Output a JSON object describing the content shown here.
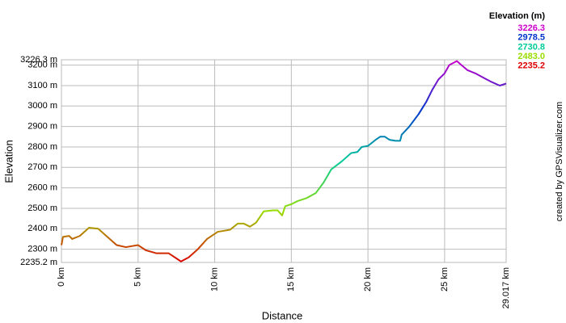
{
  "chart_data": {
    "type": "line",
    "x_label": "Distance",
    "y_label": "Elevation",
    "credit": "created by GPSVisualizer.com",
    "legend": {
      "title": "Elevation (m)",
      "items": [
        {
          "value": 3226.3,
          "label": "3226.3",
          "color": "#cc00cc"
        },
        {
          "value": 2978.5,
          "label": "2978.5",
          "color": "#0033cc"
        },
        {
          "value": 2730.8,
          "label": "2730.8",
          "color": "#00cc99"
        },
        {
          "value": 2483,
          "label": "2483.0",
          "color": "#99dd00"
        },
        {
          "value": 2235.2,
          "label": "2235.2",
          "color": "#dd0000"
        }
      ]
    },
    "x": [
      0,
      0.1,
      0.5,
      0.7,
      1.2,
      1.8,
      2.4,
      3.0,
      3.6,
      4.2,
      5.0,
      5.5,
      6.2,
      7.0,
      7.5,
      7.8,
      8.3,
      8.9,
      9.5,
      10.2,
      10.6,
      11.0,
      11.5,
      11.9,
      12.3,
      12.7,
      13.2,
      13.8,
      14.1,
      14.4,
      14.6,
      15.0,
      15.4,
      16.0,
      16.6,
      17.1,
      17.6,
      18.3,
      18.9,
      19.3,
      19.6,
      20.0,
      20.5,
      20.8,
      21.1,
      21.4,
      21.8,
      22.1,
      22.2,
      22.7,
      23.3,
      23.8,
      24.2,
      24.6,
      25.0,
      25.3,
      25.8,
      26.1,
      26.5,
      27.0,
      27.5,
      28.0,
      28.6,
      29.017
    ],
    "values": [
      2320,
      2360,
      2365,
      2350,
      2365,
      2405,
      2400,
      2360,
      2320,
      2310,
      2320,
      2295,
      2280,
      2280,
      2255,
      2240,
      2260,
      2300,
      2350,
      2385,
      2390,
      2395,
      2425,
      2425,
      2410,
      2430,
      2485,
      2490,
      2490,
      2465,
      2510,
      2520,
      2535,
      2550,
      2575,
      2625,
      2690,
      2730,
      2770,
      2775,
      2800,
      2805,
      2835,
      2850,
      2850,
      2835,
      2830,
      2830,
      2860,
      2900,
      2960,
      3020,
      3080,
      3130,
      3160,
      3200,
      3220,
      3200,
      3175,
      3160,
      3140,
      3120,
      3100,
      3110
    ],
    "xlim": [
      0,
      29.017
    ],
    "xticks": [
      {
        "value": 0,
        "label": "0 km"
      },
      {
        "value": 5,
        "label": "5 km"
      },
      {
        "value": 10,
        "label": "10 km"
      },
      {
        "value": 15,
        "label": "15 km"
      },
      {
        "value": 20,
        "label": "20 km"
      },
      {
        "value": 25,
        "label": "25 km"
      },
      {
        "value": 29.017,
        "label": "29.017 km"
      }
    ],
    "ylim": [
      2235.2,
      3226.3
    ],
    "yticks": [
      {
        "value": 2235.2,
        "label": "2235.2 m"
      },
      {
        "value": 2300,
        "label": "2300 m"
      },
      {
        "value": 2400,
        "label": "2400 m"
      },
      {
        "value": 2500,
        "label": "2500 m"
      },
      {
        "value": 2600,
        "label": "2600 m"
      },
      {
        "value": 2700,
        "label": "2700 m"
      },
      {
        "value": 2800,
        "label": "2800 m"
      },
      {
        "value": 2900,
        "label": "2900 m"
      },
      {
        "value": 3000,
        "label": "3000 m"
      },
      {
        "value": 3100,
        "label": "3100 m"
      },
      {
        "value": 3200,
        "label": "3200 m"
      },
      {
        "value": 3226.3,
        "label": "3226.3 m"
      }
    ],
    "grid": true
  }
}
